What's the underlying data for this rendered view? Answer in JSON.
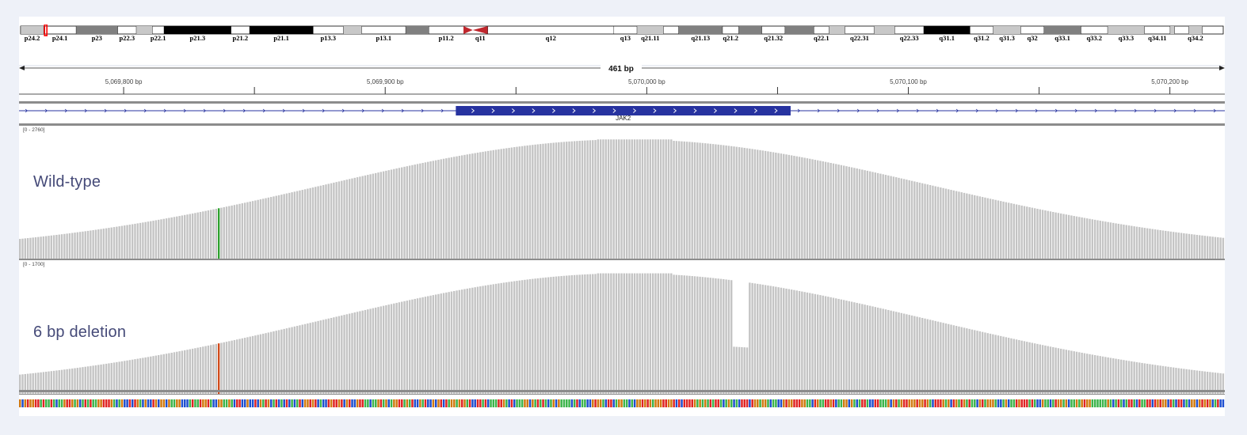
{
  "ideogram": {
    "bands": [
      {
        "name": "p24.2",
        "stain": "gpos25",
        "w": 2.0
      },
      {
        "name": "p24.1",
        "stain": "gneg",
        "w": 2.8
      },
      {
        "name": "p23",
        "stain": "gpos75",
        "w": 3.6
      },
      {
        "name": "p22.3",
        "stain": "gneg",
        "w": 1.6
      },
      {
        "name": "p22.2",
        "stain": "gpos25",
        "w": 1.4
      },
      {
        "name": "p22.1",
        "stain": "gneg",
        "w": 1.0
      },
      {
        "name": "p21.3",
        "stain": "gpos100",
        "w": 5.8
      },
      {
        "name": "p21.2",
        "stain": "gneg",
        "w": 1.6
      },
      {
        "name": "p21.1",
        "stain": "gpos100",
        "w": 5.5
      },
      {
        "name": "p13.3",
        "stain": "gneg",
        "w": 2.6
      },
      {
        "name": "p13.2",
        "stain": "gpos25",
        "w": 1.6
      },
      {
        "name": "p13.1",
        "stain": "gneg",
        "w": 3.8
      },
      {
        "name": "p12",
        "stain": "gpos75",
        "w": 2.0
      },
      {
        "name": "p11.2",
        "stain": "gneg",
        "w": 3.0
      },
      {
        "name": "p11.1",
        "stain": "acen",
        "w": 0.8
      },
      {
        "name": "q11",
        "stain": "acen",
        "w": 1.3
      },
      {
        "name": "q12",
        "stain": "gneg",
        "w": 10.9
      },
      {
        "name": "q13",
        "stain": "gneg",
        "w": 2.0
      },
      {
        "name": "q21.11",
        "stain": "gpos25",
        "w": 2.3
      },
      {
        "name": "q21.12",
        "stain": "gneg",
        "w": 1.3
      },
      {
        "name": "q21.13",
        "stain": "gpos75",
        "w": 3.8
      },
      {
        "name": "q21.2",
        "stain": "gneg",
        "w": 1.4
      },
      {
        "name": "q21.31",
        "stain": "gpos75",
        "w": 2.0
      },
      {
        "name": "q21.32",
        "stain": "gneg",
        "w": 2.0
      },
      {
        "name": "q21.33",
        "stain": "gpos75",
        "w": 2.5
      },
      {
        "name": "q22.1",
        "stain": "gneg",
        "w": 1.3
      },
      {
        "name": "q22.2",
        "stain": "gpos25",
        "w": 1.4
      },
      {
        "name": "q22.31",
        "stain": "gneg",
        "w": 2.5
      },
      {
        "name": "q22.32",
        "stain": "gpos25",
        "w": 1.8
      },
      {
        "name": "q22.33",
        "stain": "gneg",
        "w": 2.5
      },
      {
        "name": "q31.1",
        "stain": "gpos100",
        "w": 4.0
      },
      {
        "name": "q31.2",
        "stain": "gneg",
        "w": 2.0
      },
      {
        "name": "q31.3",
        "stain": "gpos25",
        "w": 2.4
      },
      {
        "name": "q32",
        "stain": "gneg",
        "w": 2.0
      },
      {
        "name": "q33.1",
        "stain": "gpos75",
        "w": 3.2
      },
      {
        "name": "q33.2",
        "stain": "gneg",
        "w": 2.3
      },
      {
        "name": "q33.3",
        "stain": "gpos25",
        "w": 3.2
      },
      {
        "name": "q34.11",
        "stain": "gneg",
        "w": 2.2
      },
      {
        "name": "q34.12",
        "stain": "gpos25",
        "w": 0.4
      },
      {
        "name": "q34.13",
        "stain": "gneg",
        "w": 1.2
      },
      {
        "name": "q34.2",
        "stain": "gpos25",
        "w": 1.2
      },
      {
        "name": "q34.3",
        "stain": "gneg",
        "w": 1.8
      }
    ],
    "labels": [
      "p24.2",
      "p24.1",
      "p23",
      "p22.3",
      "p22.1",
      "p21.3",
      "p21.2",
      "p21.1",
      "p13.3",
      "p13.1",
      "p11.2",
      "q11",
      "q12",
      "q13",
      "q21.11",
      "q21.13",
      "q21.2",
      "q21.32",
      "q22.1",
      "q22.31",
      "q22.33",
      "q31.1",
      "q31.2",
      "q31.3",
      "q32",
      "q33.1",
      "q33.2",
      "q33.3",
      "q34.11",
      "q34.2"
    ],
    "current_view_marker": "p24.1",
    "colors": {
      "gneg": "#ffffff",
      "gpos25": "#c8c8c8",
      "gpos50": "#a0a0a0",
      "gpos75": "#808080",
      "gpos100": "#000000",
      "acen": "#c0272d",
      "marker": "#ff0000"
    }
  },
  "ruler": {
    "span_label": "461 bp",
    "start_bp": 5069760,
    "end_bp": 5070221,
    "tick_step_bp": 50,
    "label_step_bp": 100,
    "tick_labels": [
      "5,069,800 bp",
      "5,069,900 bp",
      "5,070,000 bp",
      "5,070,100 bp",
      "5,070,200 bp"
    ]
  },
  "gene": {
    "name": "JAK2",
    "exon_start_bp": 5069927,
    "exon_end_bp": 5070055,
    "strand": "+",
    "color": "#2733a0"
  },
  "tracks": [
    {
      "name": "Wild-type",
      "range_label": "[0 - 2760]",
      "max": 2760,
      "profile_peak": 2600,
      "mismatch_bp": 5069836,
      "mismatch_color": "#2ca02c",
      "deletion": null
    },
    {
      "name": "6 bp deletion",
      "range_label": "[0 - 1700]",
      "max": 1700,
      "profile_peak": 1610,
      "mismatch_bp": 5069836,
      "mismatch_color": "#d04a1a",
      "deletion": {
        "start_bp": 5070033,
        "end_bp": 5070039,
        "depth_fraction": 0.42
      }
    }
  ],
  "coverage_color": "#c4c4c4",
  "base_colors": {
    "A": "#3cb44b",
    "C": "#1f4fd0",
    "G": "#d17a10",
    "T": "#e02424"
  }
}
